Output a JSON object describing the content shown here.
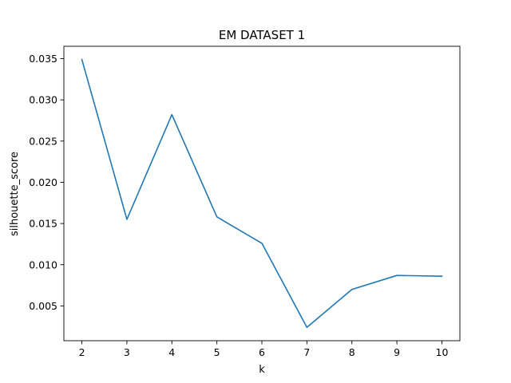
{
  "chart_data": {
    "type": "line",
    "title": "EM DATASET 1",
    "xlabel": "k",
    "ylabel": "silhouette_score",
    "x": [
      2,
      3,
      4,
      5,
      6,
      7,
      8,
      9,
      10
    ],
    "series": [
      {
        "values": [
          0.0349,
          0.0155,
          0.0282,
          0.0158,
          0.0126,
          0.0024,
          0.007,
          0.0087,
          0.0086
        ]
      }
    ],
    "xlim": [
      1.6,
      10.4
    ],
    "ylim": [
      0.00078,
      0.0365
    ],
    "xticks": [
      2,
      3,
      4,
      5,
      6,
      7,
      8,
      9,
      10
    ],
    "xtick_labels": [
      "2",
      "3",
      "4",
      "5",
      "6",
      "7",
      "8",
      "9",
      "10"
    ],
    "yticks": [
      0.005,
      0.01,
      0.015,
      0.02,
      0.025,
      0.03,
      0.035
    ],
    "ytick_labels": [
      "0.005",
      "0.010",
      "0.015",
      "0.020",
      "0.025",
      "0.030",
      "0.035"
    ],
    "grid": false,
    "legend": "none",
    "colors": {
      "line": "#1f77b4",
      "axes": "#000000"
    }
  }
}
